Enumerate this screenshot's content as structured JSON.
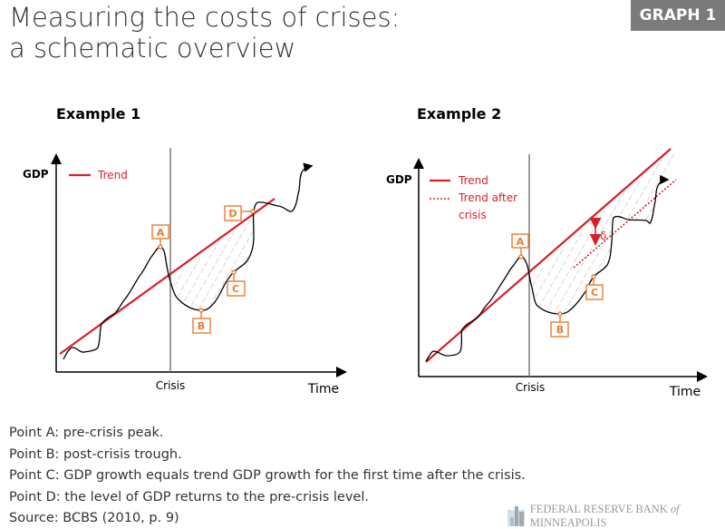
{
  "title": {
    "line1": "Measuring the costs of crises:",
    "line2": "a schematic overview"
  },
  "badge": "GRAPH 1",
  "example1": {
    "title": "Example 1",
    "ylabel": "GDP",
    "xlabel": "Time",
    "crisis": "Crisis",
    "legend_trend": "Trend",
    "points": [
      "A",
      "B",
      "C",
      "D"
    ]
  },
  "example2": {
    "title": "Example 2",
    "ylabel": "GDP",
    "xlabel": "Time",
    "crisis": "Crisis",
    "legend_trend": "Trend",
    "legend_after1": "Trend after",
    "legend_after2": "crisis",
    "delta": "δ",
    "points": [
      "A",
      "B",
      "C"
    ]
  },
  "notes": [
    "Point A: pre-crisis peak.",
    "Point B: post-crisis trough.",
    "Point C: GDP growth equals trend GDP growth for the first time after the crisis.",
    "Point D: the level of GDP returns to the pre-crisis level.",
    "Source: BCBS (2010, p. 9)"
  ],
  "logo": {
    "text1": "FEDERAL RESERVE BANK ",
    "text_of": "of",
    "text2": " MINNEAPOLIS"
  },
  "colors": {
    "trend": "#d7202a",
    "marker": "#ee7a30",
    "badge": "#7b7b7b"
  }
}
